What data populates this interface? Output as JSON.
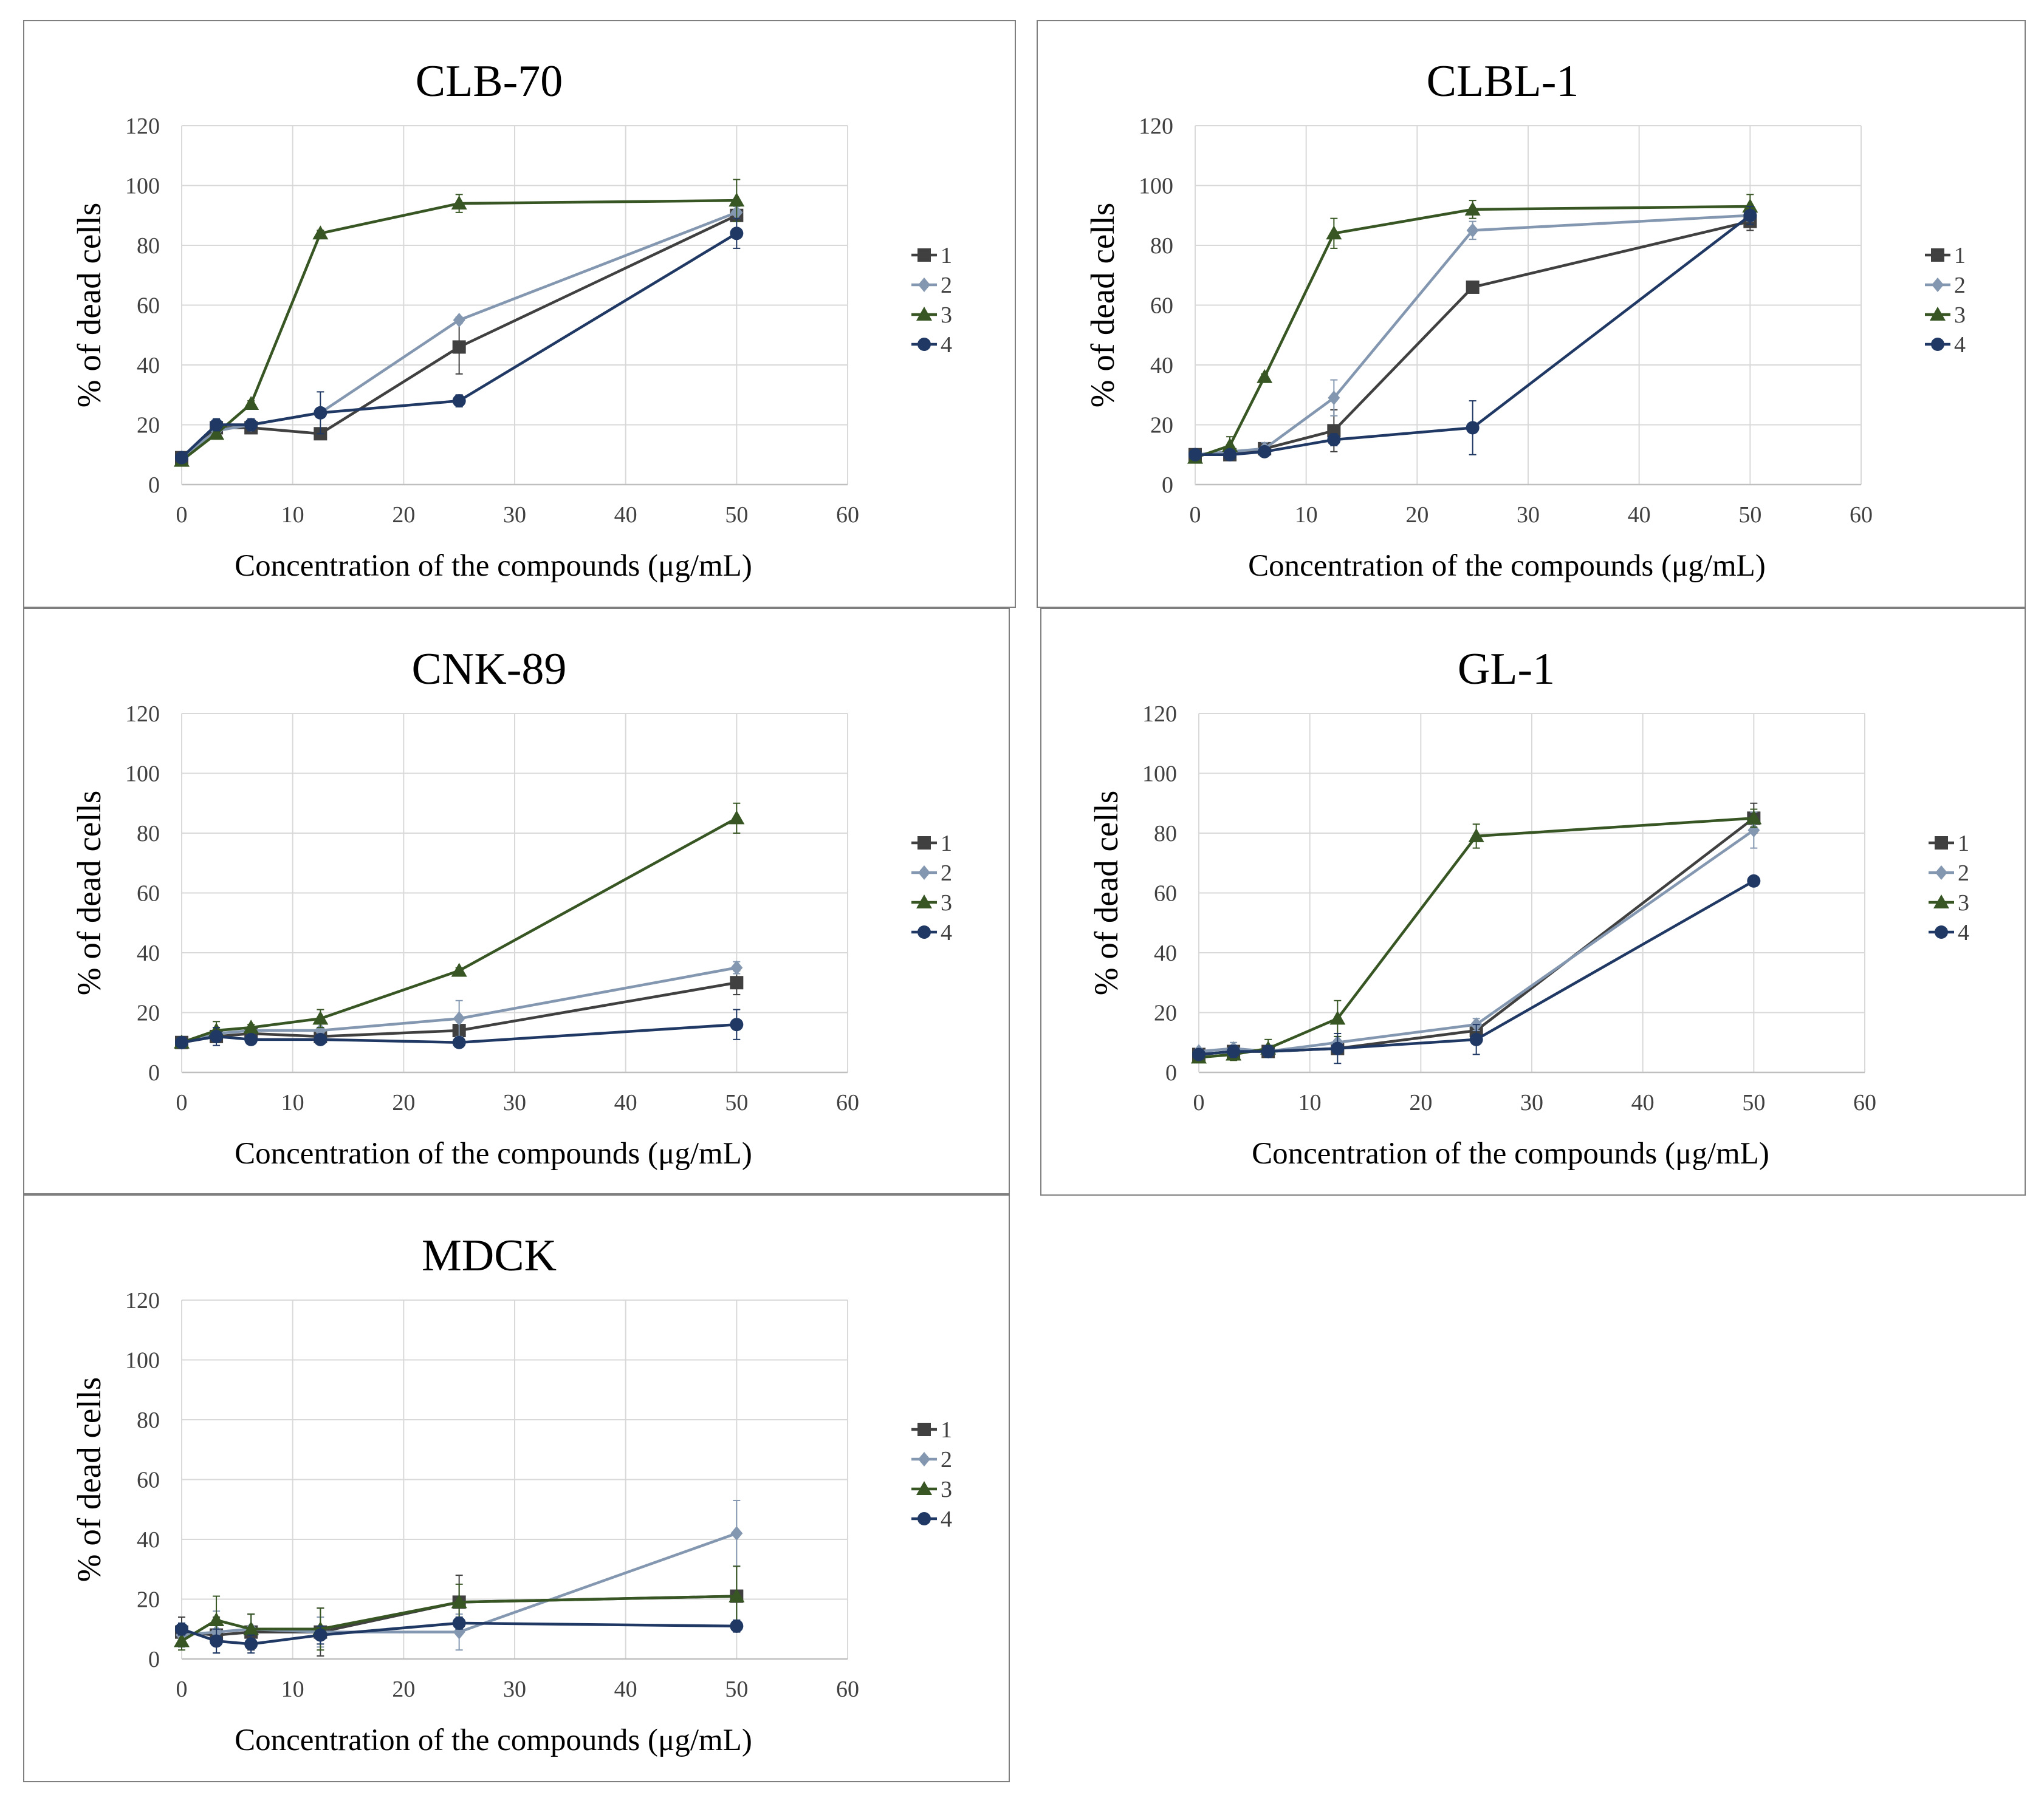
{
  "figure": {
    "panel_count": 5
  },
  "chart_data": [
    {
      "type": "line",
      "title": "CLB-70",
      "xlabel": "Concentration of the compounds (μg/mL)",
      "ylabel": "% of dead cells",
      "xlim": [
        0,
        60
      ],
      "ylim": [
        0,
        120
      ],
      "xticks": [
        0,
        10,
        20,
        30,
        40,
        50,
        60
      ],
      "yticks": [
        0,
        20,
        40,
        60,
        80,
        100,
        120
      ],
      "grid": true,
      "legend": "right",
      "x": [
        0,
        3.125,
        6.25,
        12.5,
        25,
        50
      ],
      "series": [
        {
          "name": "1",
          "color": "#404040",
          "marker": "square",
          "values": [
            9,
            19,
            19,
            17,
            46,
            90
          ],
          "errors": [
            1,
            1,
            1,
            1,
            9,
            2
          ]
        },
        {
          "name": "2",
          "color": "#8497b0",
          "marker": "diamond",
          "values": [
            9,
            18,
            20,
            24,
            55,
            91
          ],
          "errors": [
            1,
            1,
            1,
            1,
            1,
            2
          ]
        },
        {
          "name": "3",
          "color": "#375623",
          "marker": "triangle",
          "values": [
            8,
            17,
            27,
            84,
            94,
            95
          ],
          "errors": [
            1,
            1,
            1,
            1,
            3,
            7
          ]
        },
        {
          "name": "4",
          "color": "#203864",
          "marker": "circle",
          "values": [
            9,
            20,
            20,
            24,
            28,
            84
          ],
          "errors": [
            1,
            2,
            2,
            7,
            2,
            5
          ]
        }
      ]
    },
    {
      "type": "line",
      "title": "CLBL-1",
      "xlabel": "Concentration of the compounds (μg/mL)",
      "ylabel": "% of dead cells",
      "xlim": [
        0,
        60
      ],
      "ylim": [
        0,
        120
      ],
      "xticks": [
        0,
        10,
        20,
        30,
        40,
        50,
        60
      ],
      "yticks": [
        0,
        20,
        40,
        60,
        80,
        100,
        120
      ],
      "grid": true,
      "legend": "right",
      "x": [
        0,
        3.125,
        6.25,
        12.5,
        25,
        50
      ],
      "series": [
        {
          "name": "1",
          "color": "#404040",
          "marker": "square",
          "values": [
            10,
            10,
            12,
            18,
            66,
            88
          ],
          "errors": [
            1,
            1,
            2,
            7,
            1,
            3
          ]
        },
        {
          "name": "2",
          "color": "#8497b0",
          "marker": "diamond",
          "values": [
            10,
            11,
            12,
            29,
            85,
            90
          ],
          "errors": [
            1,
            1,
            2,
            6,
            3,
            2
          ]
        },
        {
          "name": "3",
          "color": "#375623",
          "marker": "triangle",
          "values": [
            9,
            13,
            36,
            84,
            92,
            93
          ],
          "errors": [
            1,
            3,
            1,
            5,
            3,
            4
          ]
        },
        {
          "name": "4",
          "color": "#203864",
          "marker": "circle",
          "values": [
            10,
            10,
            11,
            15,
            19,
            90
          ],
          "errors": [
            1,
            1,
            1,
            2,
            9,
            3
          ]
        }
      ]
    },
    {
      "type": "line",
      "title": "CNK-89",
      "xlabel": "Concentration of the compounds (μg/mL)",
      "ylabel": "% of dead cells",
      "xlim": [
        0,
        60
      ],
      "ylim": [
        0,
        120
      ],
      "xticks": [
        0,
        10,
        20,
        30,
        40,
        50,
        60
      ],
      "yticks": [
        0,
        20,
        40,
        60,
        80,
        100,
        120
      ],
      "grid": true,
      "legend": "right",
      "x": [
        0,
        3.125,
        6.25,
        12.5,
        25,
        50
      ],
      "series": [
        {
          "name": "1",
          "color": "#404040",
          "marker": "square",
          "values": [
            10,
            12,
            13,
            12,
            14,
            30
          ],
          "errors": [
            1,
            2,
            1,
            1,
            2,
            4
          ]
        },
        {
          "name": "2",
          "color": "#8497b0",
          "marker": "diamond",
          "values": [
            10,
            13,
            14,
            14,
            18,
            35
          ],
          "errors": [
            1,
            2,
            1,
            1,
            6,
            2
          ]
        },
        {
          "name": "3",
          "color": "#375623",
          "marker": "triangle",
          "values": [
            10,
            14,
            15,
            18,
            34,
            85
          ],
          "errors": [
            1,
            3,
            1,
            3,
            1,
            5
          ]
        },
        {
          "name": "4",
          "color": "#203864",
          "marker": "circle",
          "values": [
            10,
            12,
            11,
            11,
            10,
            16
          ],
          "errors": [
            1,
            3,
            1,
            1,
            1,
            5
          ]
        }
      ]
    },
    {
      "type": "line",
      "title": "GL-1",
      "xlabel": "Concentration of the compounds (μg/mL)",
      "ylabel": "% of dead cells",
      "xlim": [
        0,
        60
      ],
      "ylim": [
        0,
        120
      ],
      "xticks": [
        0,
        10,
        20,
        30,
        40,
        50,
        60
      ],
      "yticks": [
        0,
        20,
        40,
        60,
        80,
        100,
        120
      ],
      "grid": true,
      "legend": "right",
      "x": [
        0,
        3.125,
        6.25,
        12.5,
        25,
        50
      ],
      "series": [
        {
          "name": "1",
          "color": "#404040",
          "marker": "square",
          "values": [
            6,
            7,
            7,
            8,
            14,
            85
          ],
          "errors": [
            1,
            2,
            2,
            2,
            2,
            5
          ]
        },
        {
          "name": "2",
          "color": "#8497b0",
          "marker": "diamond",
          "values": [
            7,
            8,
            7,
            10,
            16,
            81
          ],
          "errors": [
            1,
            2,
            2,
            2,
            2,
            6
          ]
        },
        {
          "name": "3",
          "color": "#375623",
          "marker": "triangle",
          "values": [
            5,
            6,
            8,
            18,
            79,
            85
          ],
          "errors": [
            1,
            2,
            3,
            6,
            4,
            3
          ]
        },
        {
          "name": "4",
          "color": "#203864",
          "marker": "circle",
          "values": [
            6,
            7,
            7,
            8,
            11,
            64
          ],
          "errors": [
            1,
            2,
            2,
            5,
            5,
            1
          ]
        }
      ]
    },
    {
      "type": "line",
      "title": "MDCK",
      "xlabel": "Concentration of the compounds (μg/mL)",
      "ylabel": "% of dead cells",
      "xlim": [
        0,
        60
      ],
      "ylim": [
        0,
        120
      ],
      "xticks": [
        0,
        10,
        20,
        30,
        40,
        50,
        60
      ],
      "yticks": [
        0,
        20,
        40,
        60,
        80,
        100,
        120
      ],
      "grid": true,
      "legend": "right",
      "x": [
        0,
        3.125,
        6.25,
        12.5,
        25,
        50
      ],
      "series": [
        {
          "name": "1",
          "color": "#404040",
          "marker": "square",
          "values": [
            9,
            8,
            9,
            9,
            19,
            21
          ],
          "errors": [
            5,
            6,
            6,
            8,
            9,
            10
          ]
        },
        {
          "name": "2",
          "color": "#8497b0",
          "marker": "diamond",
          "values": [
            8,
            9,
            10,
            9,
            9,
            42
          ],
          "errors": [
            4,
            7,
            5,
            5,
            6,
            11
          ]
        },
        {
          "name": "3",
          "color": "#375623",
          "marker": "triangle",
          "values": [
            6,
            13,
            10,
            10,
            19,
            21
          ],
          "errors": [
            3,
            8,
            5,
            7,
            6,
            10
          ]
        },
        {
          "name": "4",
          "color": "#203864",
          "marker": "circle",
          "values": [
            10,
            6,
            5,
            8,
            12,
            11
          ],
          "errors": [
            2,
            4,
            3,
            3,
            2,
            2
          ]
        }
      ]
    }
  ]
}
